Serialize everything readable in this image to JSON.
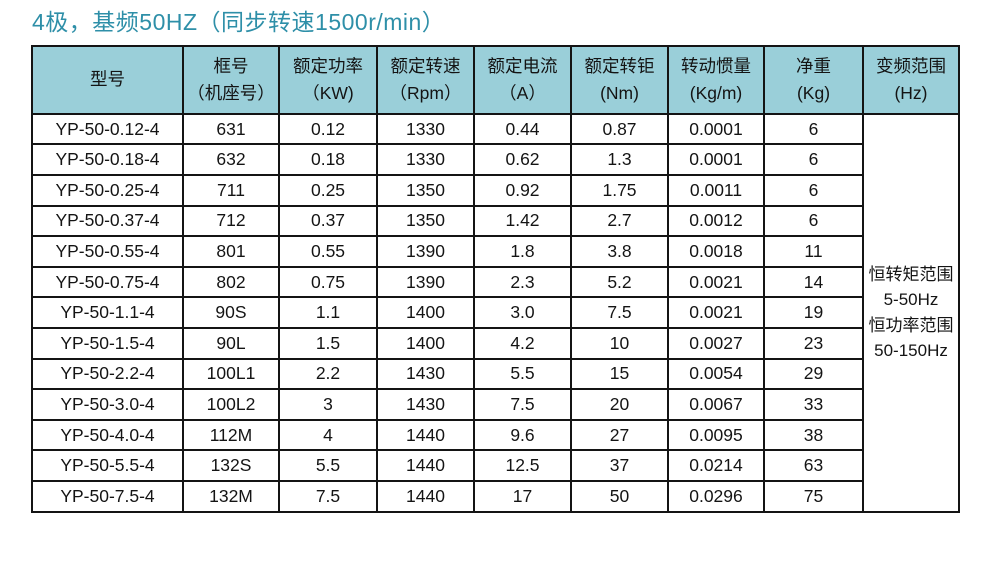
{
  "page": {
    "title": "4极，基频50HZ（同步转速1500r/min）"
  },
  "colors": {
    "header_bg": "#9ACFD9",
    "title_text": "#2E8FA8",
    "border": "#141414"
  },
  "table": {
    "headers": [
      {
        "l1": "型号",
        "l2": ""
      },
      {
        "l1": "框号",
        "l2": "（机座号）"
      },
      {
        "l1": "额定功率",
        "l2": "（KW)"
      },
      {
        "l1": "额定转速",
        "l2": "（Rpm）"
      },
      {
        "l1": "额定电流",
        "l2": "（A）"
      },
      {
        "l1": "额定转钜",
        "l2": "(Nm)"
      },
      {
        "l1": "转动惯量",
        "l2": "(Kg/m)"
      },
      {
        "l1": "净重",
        "l2": "(Kg)"
      },
      {
        "l1": "变频范围",
        "l2": "(Hz)"
      }
    ],
    "column_keys": [
      "model",
      "frame",
      "power",
      "speed",
      "current",
      "torque",
      "inertia",
      "weight"
    ],
    "rows": [
      [
        "YP-50-0.12-4",
        "631",
        "0.12",
        "1330",
        "0.44",
        "0.87",
        "0.0001",
        "6"
      ],
      [
        "YP-50-0.18-4",
        "632",
        "0.18",
        "1330",
        "0.62",
        "1.3",
        "0.0001",
        "6"
      ],
      [
        "YP-50-0.25-4",
        "711",
        "0.25",
        "1350",
        "0.92",
        "1.75",
        "0.0011",
        "6"
      ],
      [
        "YP-50-0.37-4",
        "712",
        "0.37",
        "1350",
        "1.42",
        "2.7",
        "0.0012",
        "6"
      ],
      [
        "YP-50-0.55-4",
        "801",
        "0.55",
        "1390",
        "1.8",
        "3.8",
        "0.0018",
        "11"
      ],
      [
        "YP-50-0.75-4",
        "802",
        "0.75",
        "1390",
        "2.3",
        "5.2",
        "0.0021",
        "14"
      ],
      [
        "YP-50-1.1-4",
        "90S",
        "1.1",
        "1400",
        "3.0",
        "7.5",
        "0.0021",
        "19"
      ],
      [
        "YP-50-1.5-4",
        "90L",
        "1.5",
        "1400",
        "4.2",
        "10",
        "0.0027",
        "23"
      ],
      [
        "YP-50-2.2-4",
        "100L1",
        "2.2",
        "1430",
        "5.5",
        "15",
        "0.0054",
        "29"
      ],
      [
        "YP-50-3.0-4",
        "100L2",
        "3",
        "1430",
        "7.5",
        "20",
        "0.0067",
        "33"
      ],
      [
        "YP-50-4.0-4",
        "112M",
        "4",
        "1440",
        "9.6",
        "27",
        "0.0095",
        "38"
      ],
      [
        "YP-50-5.5-4",
        "132S",
        "5.5",
        "1440",
        "12.5",
        "37",
        "0.0214",
        "63"
      ],
      [
        "YP-50-7.5-4",
        "132M",
        "7.5",
        "1440",
        "17",
        "50",
        "0.0296",
        "75"
      ]
    ],
    "freq_range_lines": [
      "恒转矩范围",
      "5-50Hz",
      "恒功率范围",
      "50-150Hz"
    ]
  }
}
